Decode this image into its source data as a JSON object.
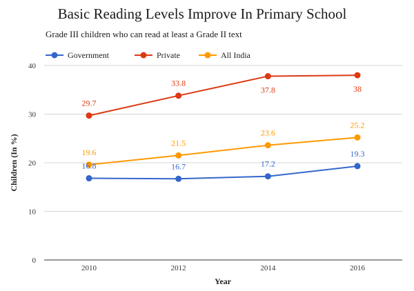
{
  "chart_data": {
    "type": "line",
    "title": "Basic Reading Levels Improve In Primary School",
    "subtitle": "Grade III children who can read at least a Grade II text",
    "xlabel": "Year",
    "ylabel": "Children (In %)",
    "categories": [
      "2010",
      "2012",
      "2014",
      "2016"
    ],
    "ylim": [
      0,
      40
    ],
    "yticks": [
      0,
      10,
      20,
      30,
      40
    ],
    "grid": true,
    "legend_position": "top-left",
    "series": [
      {
        "name": "Government",
        "color": "#3366cc",
        "values": [
          16.8,
          16.7,
          17.2,
          19.3
        ],
        "labels": [
          "16.8",
          "16.7",
          "17.2",
          "19.3"
        ]
      },
      {
        "name": "Private",
        "color": "#dc3912",
        "values": [
          29.7,
          33.8,
          37.8,
          38.0
        ],
        "labels": [
          "29.7",
          "33.8",
          "37.8",
          "38"
        ]
      },
      {
        "name": "All India",
        "color": "#ff9900",
        "values": [
          19.6,
          21.5,
          23.6,
          25.2
        ],
        "labels": [
          "19.6",
          "21.5",
          "23.6",
          "25.2"
        ]
      }
    ]
  }
}
